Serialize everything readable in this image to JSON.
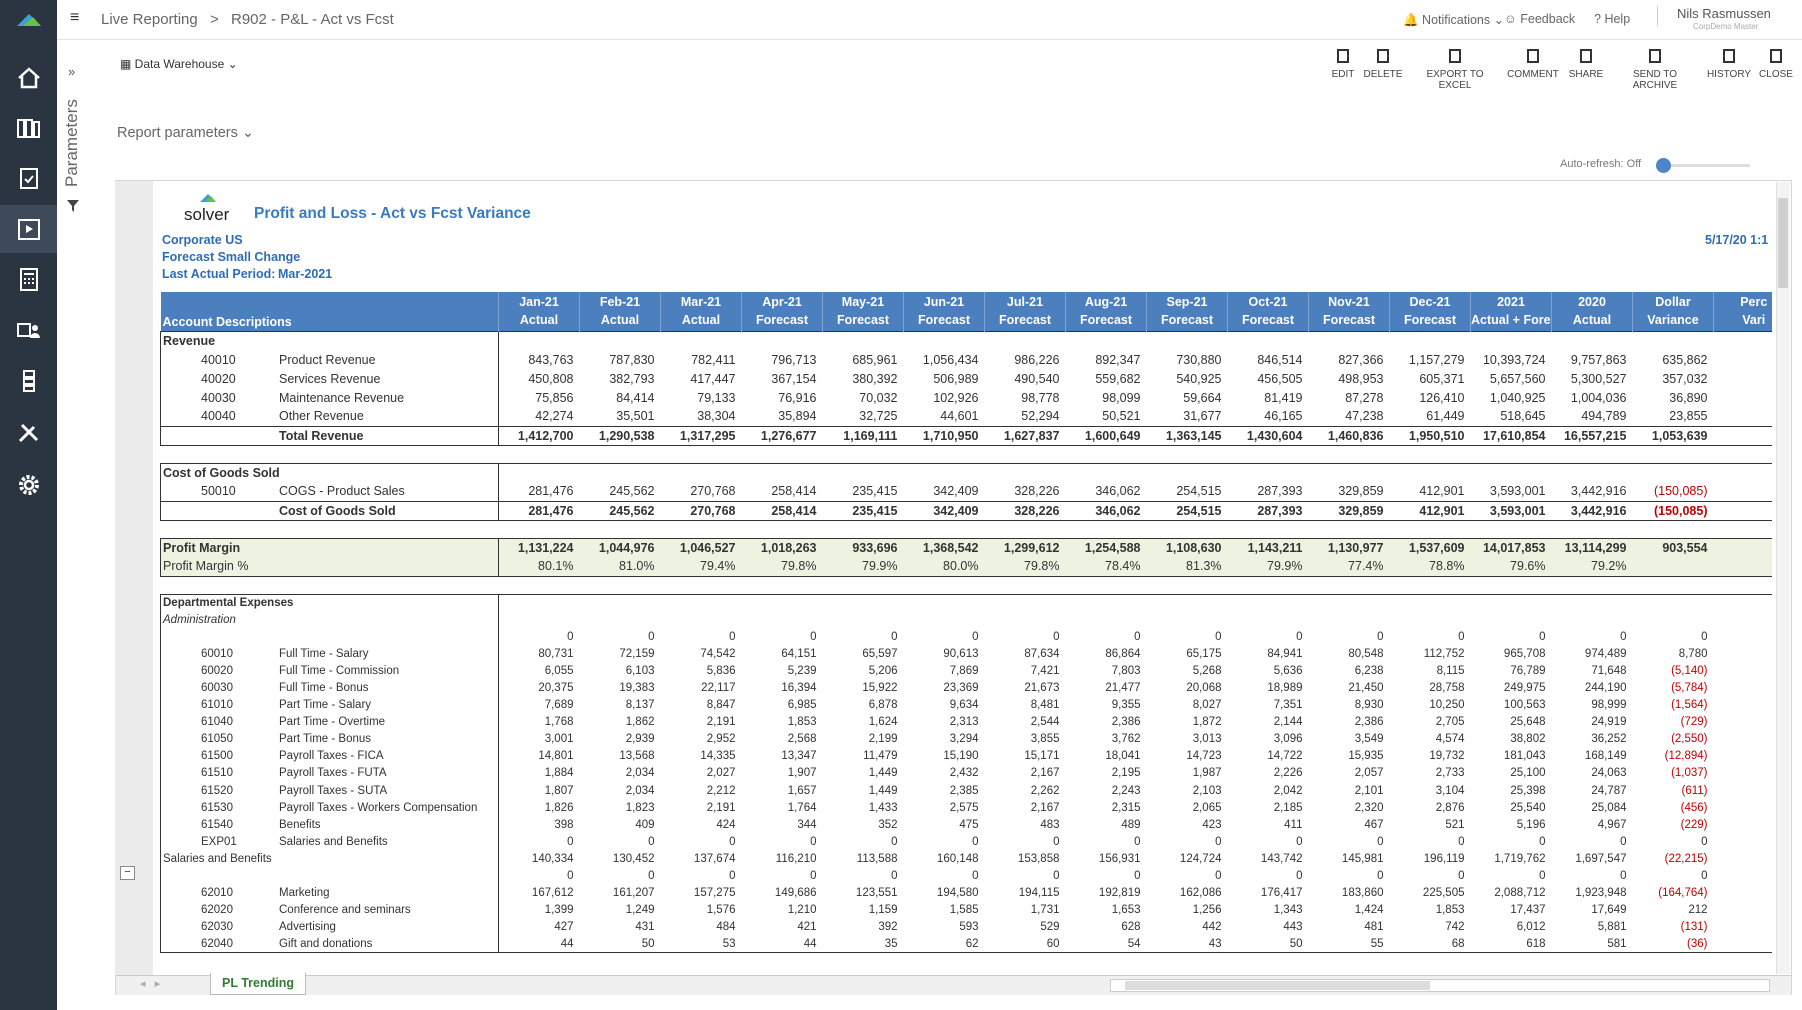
{
  "topbar": {
    "breadcrumb": [
      "Live Reporting",
      ">",
      "R902 - P&L - Act vs Fcst"
    ],
    "notifications": "Notifications",
    "feedback": "Feedback",
    "help": "Help",
    "user": "Nils Rasmussen",
    "role": "CorpDemo Master"
  },
  "sidebar": {
    "parameters": "Parameters"
  },
  "toolbar": {
    "source": "Data Warehouse",
    "actions": [
      "EDIT",
      "DELETE",
      "EXPORT TO EXCEL",
      "COMMENT",
      "SHARE",
      "SEND TO ARCHIVE",
      "HISTORY",
      "CLOSE"
    ]
  },
  "report_parameters": "Report parameters",
  "auto_refresh": "Auto-refresh: Off",
  "report": {
    "logo": "solver",
    "title": "Profit and Loss - Act vs Fcst Variance",
    "company": "Corporate US",
    "scenario": "Forecast Small Change",
    "last_actual_label": "Last Actual Period:",
    "last_actual_value": "Mar-2021",
    "date": "5/17/20 1:1"
  },
  "table": {
    "header": {
      "label": "Account Descriptions",
      "columns": [
        [
          "Jan-21",
          "Actual"
        ],
        [
          "Feb-21",
          "Actual"
        ],
        [
          "Mar-21",
          "Actual"
        ],
        [
          "Apr-21",
          "Forecast"
        ],
        [
          "May-21",
          "Forecast"
        ],
        [
          "Jun-21",
          "Forecast"
        ],
        [
          "Jul-21",
          "Forecast"
        ],
        [
          "Aug-21",
          "Forecast"
        ],
        [
          "Sep-21",
          "Forecast"
        ],
        [
          "Oct-21",
          "Forecast"
        ],
        [
          "Nov-21",
          "Forecast"
        ],
        [
          "Dec-21",
          "Forecast"
        ],
        [
          "2021",
          "Actual + Forecast"
        ],
        [
          "2020",
          "Actual"
        ],
        [
          "Dollar",
          "Variance"
        ],
        [
          "Perc",
          "Vari"
        ]
      ]
    },
    "sections": [
      {
        "rows": [
          {
            "label": "Revenue"
          },
          {
            "code": "40010",
            "label": "Product Revenue",
            "values": [
              "843,763",
              "787,830",
              "782,411",
              "796,713",
              "685,961",
              "1,056,434",
              "986,226",
              "892,347",
              "730,880",
              "846,514",
              "827,366",
              "1,157,279",
              "10,393,724",
              "9,757,863",
              "635,862"
            ]
          },
          {
            "code": "40020",
            "label": "Services Revenue",
            "values": [
              "450,808",
              "382,793",
              "417,447",
              "367,154",
              "380,392",
              "506,989",
              "490,540",
              "559,682",
              "540,925",
              "456,505",
              "498,953",
              "605,371",
              "5,657,560",
              "5,300,527",
              "357,032"
            ]
          },
          {
            "code": "40030",
            "label": "Maintenance Revenue",
            "values": [
              "75,856",
              "84,414",
              "79,133",
              "76,916",
              "70,032",
              "102,926",
              "98,778",
              "98,099",
              "59,664",
              "81,419",
              "87,278",
              "126,410",
              "1,040,925",
              "1,004,036",
              "36,890"
            ]
          },
          {
            "code": "40040",
            "label": "Other Revenue",
            "values": [
              "42,274",
              "35,501",
              "38,304",
              "35,894",
              "32,725",
              "44,601",
              "52,294",
              "50,521",
              "31,677",
              "46,165",
              "47,238",
              "61,449",
              "518,645",
              "494,789",
              "23,855"
            ]
          },
          {
            "label": "Total Revenue",
            "values": [
              "1,412,700",
              "1,290,538",
              "1,317,295",
              "1,276,677",
              "1,169,111",
              "1,710,950",
              "1,627,837",
              "1,600,649",
              "1,363,145",
              "1,430,604",
              "1,460,836",
              "1,950,510",
              "17,610,854",
              "16,557,215",
              "1,053,639"
            ]
          }
        ]
      },
      {
        "rows": [
          {
            "label": "Cost of Goods Sold"
          },
          {
            "code": "50010",
            "label": "COGS - Product Sales",
            "values": [
              "281,476",
              "245,562",
              "270,768",
              "258,414",
              "235,415",
              "342,409",
              "328,226",
              "346,062",
              "254,515",
              "287,393",
              "329,859",
              "412,901",
              "3,593,001",
              "3,442,916",
              "(150,085)"
            ]
          },
          {
            "label": "Cost of Goods Sold",
            "values": [
              "281,476",
              "245,562",
              "270,768",
              "258,414",
              "235,415",
              "342,409",
              "328,226",
              "346,062",
              "254,515",
              "287,393",
              "329,859",
              "412,901",
              "3,593,001",
              "3,442,916",
              "(150,085)"
            ]
          }
        ]
      },
      {
        "rows": [
          {
            "label": "Profit Margin",
            "values": [
              "1,131,224",
              "1,044,976",
              "1,046,527",
              "1,018,263",
              "933,696",
              "1,368,542",
              "1,299,612",
              "1,254,588",
              "1,108,630",
              "1,143,211",
              "1,130,977",
              "1,537,609",
              "14,017,853",
              "13,114,299",
              "903,554"
            ]
          },
          {
            "label": "Profit Margin %",
            "values": [
              "80.1%",
              "81.0%",
              "79.4%",
              "79.8%",
              "79.9%",
              "80.0%",
              "79.8%",
              "78.4%",
              "81.3%",
              "79.9%",
              "77.4%",
              "78.8%",
              "79.6%",
              "79.2%",
              null
            ]
          }
        ]
      },
      {
        "rows": [
          {
            "label": "Departmental Expenses"
          },
          {
            "label": "Administration"
          },
          {
            "values": [
              "0",
              "0",
              "0",
              "0",
              "0",
              "0",
              "0",
              "0",
              "0",
              "0",
              "0",
              "0",
              "0",
              "0",
              "0"
            ]
          },
          {
            "code": "60010",
            "label": "Full Time - Salary",
            "values": [
              "80,731",
              "72,159",
              "74,542",
              "64,151",
              "65,597",
              "90,613",
              "87,634",
              "86,864",
              "65,175",
              "84,941",
              "80,548",
              "112,752",
              "965,708",
              "974,489",
              "8,780"
            ]
          },
          {
            "code": "60020",
            "label": "Full Time - Commission",
            "values": [
              "6,055",
              "6,103",
              "5,836",
              "5,239",
              "5,206",
              "7,869",
              "7,421",
              "7,803",
              "5,268",
              "5,636",
              "6,238",
              "8,115",
              "76,789",
              "71,648",
              "(5,140)"
            ]
          },
          {
            "code": "60030",
            "label": "Full Time - Bonus",
            "values": [
              "20,375",
              "19,383",
              "22,117",
              "16,394",
              "15,922",
              "23,369",
              "21,673",
              "21,477",
              "20,068",
              "18,989",
              "21,450",
              "28,758",
              "249,975",
              "244,190",
              "(5,784)"
            ]
          },
          {
            "code": "61010",
            "label": "Part Time - Salary",
            "values": [
              "7,689",
              "8,137",
              "8,847",
              "6,985",
              "6,878",
              "9,634",
              "8,481",
              "9,355",
              "8,027",
              "7,351",
              "8,930",
              "10,250",
              "100,563",
              "98,999",
              "(1,564)"
            ]
          },
          {
            "code": "61040",
            "label": "Part Time - Overtime",
            "values": [
              "1,768",
              "1,862",
              "2,191",
              "1,853",
              "1,624",
              "2,313",
              "2,544",
              "2,386",
              "1,872",
              "2,144",
              "2,386",
              "2,705",
              "25,648",
              "24,919",
              "(729)"
            ]
          },
          {
            "code": "61050",
            "label": "Part Time - Bonus",
            "values": [
              "3,001",
              "2,939",
              "2,952",
              "2,568",
              "2,199",
              "3,294",
              "3,855",
              "3,762",
              "3,013",
              "3,096",
              "3,549",
              "4,574",
              "38,802",
              "36,252",
              "(2,550)"
            ]
          },
          {
            "code": "61500",
            "label": "Payroll Taxes - FICA",
            "values": [
              "14,801",
              "13,568",
              "14,335",
              "13,347",
              "11,479",
              "15,190",
              "15,171",
              "18,041",
              "14,723",
              "14,722",
              "15,935",
              "19,732",
              "181,043",
              "168,149",
              "(12,894)"
            ]
          },
          {
            "code": "61510",
            "label": "Payroll Taxes - FUTA",
            "values": [
              "1,884",
              "2,034",
              "2,027",
              "1,907",
              "1,449",
              "2,432",
              "2,167",
              "2,195",
              "1,987",
              "2,226",
              "2,057",
              "2,733",
              "25,100",
              "24,063",
              "(1,037)"
            ]
          },
          {
            "code": "61520",
            "label": "Payroll Taxes - SUTA",
            "values": [
              "1,807",
              "2,034",
              "2,212",
              "1,657",
              "1,449",
              "2,385",
              "2,262",
              "2,243",
              "2,103",
              "2,042",
              "2,101",
              "3,104",
              "25,398",
              "24,787",
              "(611)"
            ]
          },
          {
            "code": "61530",
            "label": "Payroll Taxes - Workers Compensation",
            "values": [
              "1,826",
              "1,823",
              "2,191",
              "1,764",
              "1,433",
              "2,575",
              "2,167",
              "2,315",
              "2,065",
              "2,185",
              "2,320",
              "2,876",
              "25,540",
              "25,084",
              "(456)"
            ]
          },
          {
            "code": "61540",
            "label": "Benefits",
            "values": [
              "398",
              "409",
              "424",
              "344",
              "352",
              "475",
              "483",
              "489",
              "423",
              "411",
              "467",
              "521",
              "5,196",
              "4,967",
              "(229)"
            ]
          },
          {
            "code": "EXP01",
            "label": "Salaries and Benefits",
            "values": [
              "0",
              "0",
              "0",
              "0",
              "0",
              "0",
              "0",
              "0",
              "0",
              "0",
              "0",
              "0",
              "0",
              "0",
              "0"
            ]
          },
          {
            "label": "Salaries and Benefits",
            "values": [
              "140,334",
              "130,452",
              "137,674",
              "116,210",
              "113,588",
              "160,148",
              "153,858",
              "156,931",
              "124,724",
              "143,742",
              "145,981",
              "196,119",
              "1,719,762",
              "1,697,547",
              "(22,215)"
            ]
          },
          {
            "values": [
              "0",
              "0",
              "0",
              "0",
              "0",
              "0",
              "0",
              "0",
              "0",
              "0",
              "0",
              "0",
              "0",
              "0",
              "0"
            ]
          },
          {
            "code": "62010",
            "label": "Marketing",
            "values": [
              "167,612",
              "161,207",
              "157,275",
              "149,686",
              "123,551",
              "194,580",
              "194,115",
              "192,819",
              "162,086",
              "176,417",
              "183,860",
              "225,505",
              "2,088,712",
              "1,923,948",
              "(164,764)"
            ]
          },
          {
            "code": "62020",
            "label": "Conference and seminars",
            "values": [
              "1,399",
              "1,249",
              "1,576",
              "1,210",
              "1,159",
              "1,585",
              "1,731",
              "1,653",
              "1,256",
              "1,343",
              "1,424",
              "1,853",
              "17,437",
              "17,649",
              "212"
            ]
          },
          {
            "code": "62030",
            "label": "Advertising",
            "values": [
              "427",
              "431",
              "484",
              "421",
              "392",
              "593",
              "529",
              "628",
              "442",
              "443",
              "481",
              "742",
              "6,012",
              "5,881",
              "(131)"
            ]
          },
          {
            "code": "62040",
            "label": "Gift and donations",
            "values": [
              "44",
              "50",
              "53",
              "44",
              "35",
              "62",
              "60",
              "54",
              "43",
              "50",
              "55",
              "68",
              "618",
              "581",
              "(36)"
            ]
          }
        ]
      }
    ]
  },
  "tabs": [
    "PL Trending"
  ]
}
